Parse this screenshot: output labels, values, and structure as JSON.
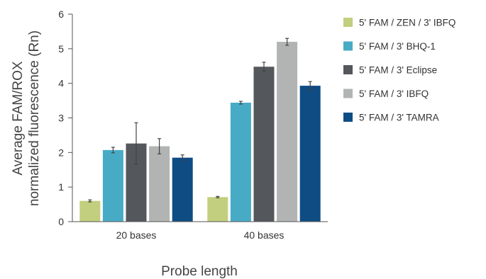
{
  "chart_data": {
    "type": "bar",
    "categories": [
      "20 bases",
      "40 bases"
    ],
    "series": [
      {
        "name": "5' FAM / ZEN / 3' IBFQ",
        "color": "#c2cf7e",
        "values": [
          0.6,
          0.71
        ],
        "errors": [
          0.03,
          0.02
        ]
      },
      {
        "name": "5' FAM / 3' BHQ-1",
        "color": "#48abc6",
        "values": [
          2.07,
          3.44
        ],
        "errors": [
          0.08,
          0.04
        ]
      },
      {
        "name": "5' FAM / 3' Eclipse",
        "color": "#54575b",
        "values": [
          2.26,
          4.48
        ],
        "errors": [
          0.6,
          0.13
        ]
      },
      {
        "name": "5' FAM / 3' IBFQ",
        "color": "#b2b3b3",
        "values": [
          2.18,
          5.2
        ],
        "errors": [
          0.22,
          0.1
        ]
      },
      {
        "name": "5' FAM / 3' TAMRA",
        "color": "#0f4c84",
        "values": [
          1.85,
          3.93
        ],
        "errors": [
          0.08,
          0.12
        ]
      }
    ],
    "ylim": [
      0,
      6
    ],
    "yticks": [
      "0",
      "1",
      "2",
      "3",
      "4",
      "5",
      "6"
    ],
    "ylabel_line1": "Average FAM/ROX",
    "ylabel_line2": "normalized fluorescence (Rn)",
    "xlabel": "Probe length",
    "grid": false,
    "legend": "right"
  }
}
